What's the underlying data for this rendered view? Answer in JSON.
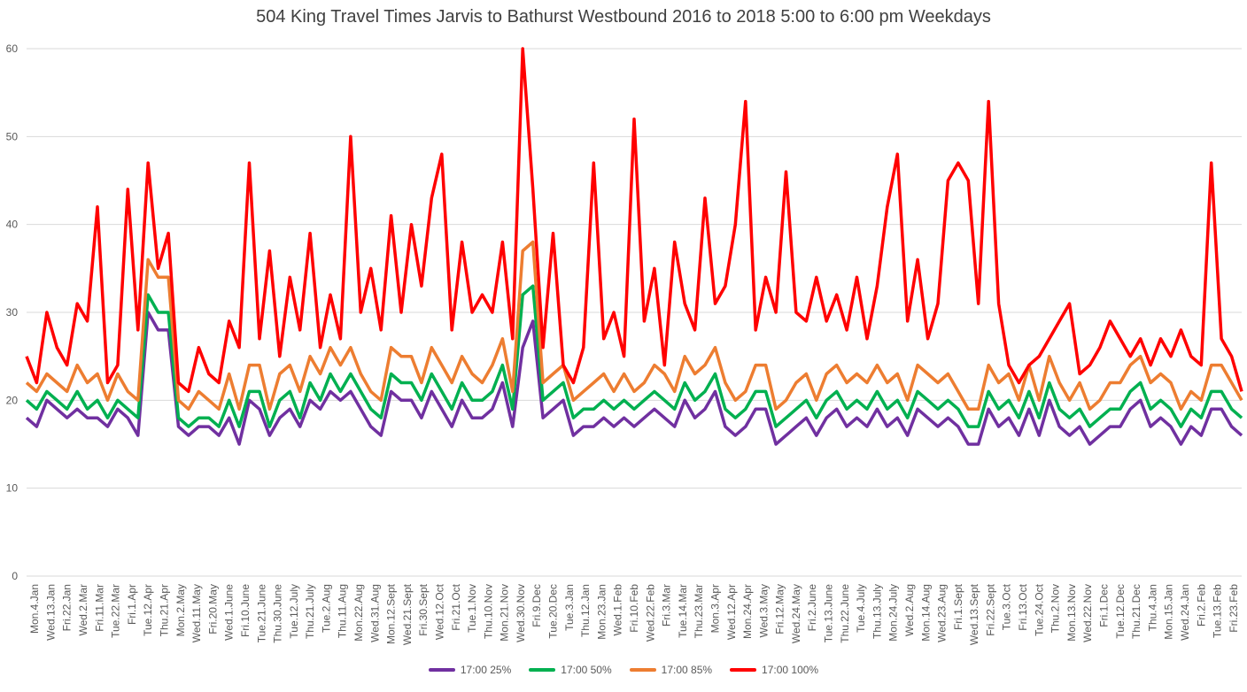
{
  "chart_data": {
    "type": "line",
    "title": "504 King Travel Times Jarvis to Bathurst Westbound 2016 to 2018 5:00 to 6:00 pm Weekdays",
    "xlabel": "",
    "ylabel": "",
    "ylim": [
      0,
      60
    ],
    "yticks": [
      "0",
      "10",
      "20",
      "30",
      "40",
      "50",
      "60"
    ],
    "grid": true,
    "legend_position": "bottom",
    "x_tick_labels": [
      "Mon.4.Jan",
      "Wed.13.Jan",
      "Fri.22.Jan",
      "Wed.2.Mar",
      "Fri.11.Mar",
      "Tue.22.Mar",
      "Fri.1.Apr",
      "Tue.12.Apr",
      "Thu.21.Apr",
      "Mon.2.May",
      "Wed.11.May",
      "Fri.20.May",
      "Wed.1.June",
      "Fri.10.June",
      "Tue.21.June",
      "Thu.30.June",
      "Tue.12.July",
      "Thu.21.July",
      "Tue.2.Aug",
      "Thu.11.Aug",
      "Mon.22.Aug",
      "Wed.31.Aug",
      "Mon.12.Sept",
      "Wed.21.Sept",
      "Fri.30.Sept",
      "Wed.12.Oct",
      "Fri.21.Oct",
      "Tue.1.Nov",
      "Thu.10.Nov",
      "Mon.21.Nov",
      "Wed.30.Nov",
      "Fri.9.Dec",
      "Tue.20.Dec",
      "Tue.3.Jan",
      "Thu.12.Jan",
      "Mon.23.Jan",
      "Wed.1.Feb",
      "Fri.10.Feb",
      "Wed.22.Feb",
      "Fri.3.Mar",
      "Tue.14.Mar",
      "Thu.23.Mar",
      "Mon.3.Apr",
      "Wed.12.Apr",
      "Mon.24.Apr",
      "Wed.3.May",
      "Fri.12.May",
      "Wed.24.May",
      "Fri.2.June",
      "Tue.13.June",
      "Thu.22.June",
      "Tue.4.July",
      "Thu.13.July",
      "Mon.24.July",
      "Wed.2.Aug",
      "Mon.14.Aug",
      "Wed.23.Aug",
      "Fri.1.Sept",
      "Wed.13.Sept",
      "Fri.22.Sept",
      "Tue.3.Oct",
      "Fri.13.Oct",
      "Tue.24.Oct",
      "Thu.2.Nov",
      "Mon.13.Nov",
      "Wed.22.Nov",
      "Fri.1.Dec",
      "Tue.12.Dec",
      "Thu.21.Dec",
      "Thu.4.Jan",
      "Mon.15.Jan",
      "Wed.24.Jan",
      "Fri.2.Feb",
      "Tue.13.Feb",
      "Fri.23.Feb"
    ],
    "series": [
      {
        "name": "17:00 25%",
        "color": "#7030a0",
        "values": [
          18,
          17,
          20,
          19,
          18,
          19,
          18,
          18,
          17,
          19,
          18,
          16,
          30,
          28,
          28,
          17,
          16,
          17,
          17,
          16,
          18,
          15,
          20,
          19,
          16,
          18,
          19,
          17,
          20,
          19,
          21,
          20,
          21,
          19,
          17,
          16,
          21,
          20,
          20,
          18,
          21,
          19,
          17,
          20,
          18,
          18,
          19,
          22,
          17,
          26,
          29,
          18,
          19,
          20,
          16,
          17,
          17,
          18,
          17,
          18,
          17,
          18,
          19,
          18,
          17,
          20,
          18,
          19,
          21,
          17,
          16,
          17,
          19,
          19,
          15,
          16,
          17,
          18,
          16,
          18,
          19,
          17,
          18,
          17,
          19,
          17,
          18,
          16,
          19,
          18,
          17,
          18,
          17,
          15,
          15,
          19,
          17,
          18,
          16,
          19,
          16,
          20,
          17,
          16,
          17,
          15,
          16,
          17,
          17,
          19,
          20,
          17,
          18,
          17,
          15,
          17,
          16,
          19,
          19,
          17,
          16
        ]
      },
      {
        "name": "17:00 50%",
        "color": "#00b050",
        "values": [
          20,
          19,
          21,
          20,
          19,
          21,
          19,
          20,
          18,
          20,
          19,
          18,
          32,
          30,
          30,
          18,
          17,
          18,
          18,
          17,
          20,
          17,
          21,
          21,
          17,
          20,
          21,
          18,
          22,
          20,
          23,
          21,
          23,
          21,
          19,
          18,
          23,
          22,
          22,
          20,
          23,
          21,
          19,
          22,
          20,
          20,
          21,
          24,
          19,
          32,
          33,
          20,
          21,
          22,
          18,
          19,
          19,
          20,
          19,
          20,
          19,
          20,
          21,
          20,
          19,
          22,
          20,
          21,
          23,
          19,
          18,
          19,
          21,
          21,
          17,
          18,
          19,
          20,
          18,
          20,
          21,
          19,
          20,
          19,
          21,
          19,
          20,
          18,
          21,
          20,
          19,
          20,
          19,
          17,
          17,
          21,
          19,
          20,
          18,
          21,
          18,
          22,
          19,
          18,
          19,
          17,
          18,
          19,
          19,
          21,
          22,
          19,
          20,
          19,
          17,
          19,
          18,
          21,
          21,
          19,
          18
        ]
      },
      {
        "name": "17:00 85%",
        "color": "#ed7d31",
        "values": [
          22,
          21,
          23,
          22,
          21,
          24,
          22,
          23,
          20,
          23,
          21,
          20,
          36,
          34,
          34,
          20,
          19,
          21,
          20,
          19,
          23,
          19,
          24,
          24,
          19,
          23,
          24,
          21,
          25,
          23,
          26,
          24,
          26,
          23,
          21,
          20,
          26,
          25,
          25,
          22,
          26,
          24,
          22,
          25,
          23,
          22,
          24,
          27,
          21,
          37,
          38,
          22,
          23,
          24,
          20,
          21,
          22,
          23,
          21,
          23,
          21,
          22,
          24,
          23,
          21,
          25,
          23,
          24,
          26,
          22,
          20,
          21,
          24,
          24,
          19,
          20,
          22,
          23,
          20,
          23,
          24,
          22,
          23,
          22,
          24,
          22,
          23,
          20,
          24,
          23,
          22,
          23,
          21,
          19,
          19,
          24,
          22,
          23,
          20,
          24,
          20,
          25,
          22,
          20,
          22,
          19,
          20,
          22,
          22,
          24,
          25,
          22,
          23,
          22,
          19,
          21,
          20,
          24,
          24,
          22,
          20
        ]
      },
      {
        "name": "17:00 100%",
        "color": "#ff0000",
        "values": [
          25,
          22,
          30,
          26,
          24,
          31,
          29,
          42,
          22,
          24,
          44,
          28,
          47,
          35,
          39,
          22,
          21,
          26,
          23,
          22,
          29,
          26,
          47,
          27,
          37,
          25,
          34,
          28,
          39,
          26,
          32,
          27,
          50,
          30,
          35,
          28,
          41,
          30,
          40,
          33,
          43,
          48,
          28,
          38,
          30,
          32,
          30,
          38,
          27,
          60,
          44,
          26,
          39,
          24,
          22,
          26,
          47,
          27,
          30,
          25,
          52,
          29,
          35,
          24,
          38,
          31,
          28,
          43,
          31,
          33,
          40,
          54,
          28,
          34,
          30,
          46,
          30,
          29,
          34,
          29,
          32,
          28,
          34,
          27,
          33,
          42,
          48,
          29,
          36,
          27,
          31,
          45,
          47,
          45,
          31,
          54,
          31,
          24,
          22,
          24,
          25,
          27,
          29,
          31,
          23,
          24,
          26,
          29,
          27,
          25,
          27,
          24,
          27,
          25,
          28,
          25,
          24,
          47,
          27,
          25,
          21
        ]
      }
    ]
  }
}
